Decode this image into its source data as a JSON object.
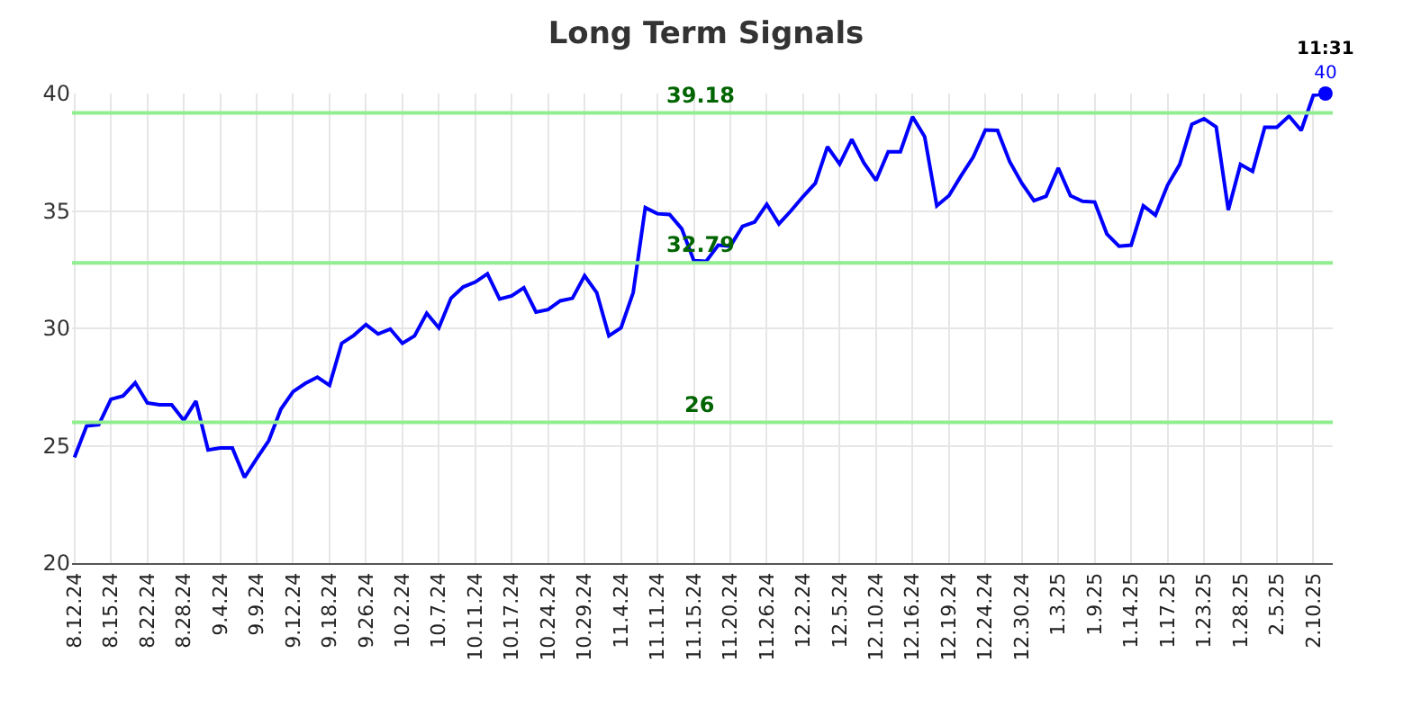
{
  "chart_data": {
    "type": "line",
    "title": "Long Term Signals",
    "categories": [
      "8.12.24",
      null,
      null,
      "8.15.24",
      null,
      null,
      "8.22.24",
      null,
      null,
      "8.28.24",
      null,
      null,
      "9.4.24",
      null,
      null,
      "9.9.24",
      null,
      null,
      "9.12.24",
      null,
      null,
      "9.18.24",
      null,
      null,
      "9.26.24",
      null,
      null,
      "10.2.24",
      null,
      null,
      "10.7.24",
      null,
      null,
      "10.11.24",
      null,
      null,
      "10.17.24",
      null,
      null,
      "10.24.24",
      null,
      null,
      "10.29.24",
      null,
      null,
      "11.4.24",
      null,
      null,
      "11.11.24",
      null,
      null,
      "11.15.24",
      null,
      null,
      "11.20.24",
      null,
      null,
      "11.26.24",
      null,
      null,
      "12.2.24",
      null,
      null,
      "12.5.24",
      null,
      null,
      "12.10.24",
      null,
      null,
      "12.16.24",
      null,
      null,
      "12.19.24",
      null,
      null,
      "12.24.24",
      null,
      null,
      "12.30.24",
      null,
      null,
      "1.3.25",
      null,
      null,
      "1.9.25",
      null,
      null,
      "1.14.25",
      null,
      null,
      "1.17.25",
      null,
      null,
      "1.23.25",
      null,
      null,
      "1.28.25",
      null,
      null,
      "2.5.25",
      null,
      null,
      "2.10.25",
      null
    ],
    "series": [
      {
        "color": "#0000ff",
        "values": [
          24.5,
          25.84,
          25.9,
          26.98,
          27.12,
          27.68,
          26.82,
          26.74,
          26.74,
          26.08,
          26.9,
          24.82,
          24.9,
          24.9,
          23.65,
          24.45,
          25.22,
          26.56,
          27.3,
          27.65,
          27.92,
          27.57,
          29.36,
          29.7,
          30.16,
          29.76,
          29.97,
          29.36,
          29.68,
          30.64,
          30.02,
          31.28,
          31.76,
          31.97,
          32.32,
          31.25,
          31.38,
          31.73,
          30.69,
          30.8,
          31.17,
          31.28,
          32.24,
          31.52,
          29.68,
          30.02,
          31.52,
          35.14,
          34.88,
          34.85,
          34.24,
          32.88,
          32.85,
          33.54,
          33.5,
          34.34,
          34.53,
          35.28,
          34.45,
          35.01,
          35.62,
          36.18,
          37.73,
          37.0,
          38.05,
          37.04,
          36.3,
          37.52,
          37.52,
          39.01,
          38.16,
          35.22,
          35.65,
          36.5,
          37.3,
          38.45,
          38.43,
          37.1,
          36.18,
          35.44,
          35.63,
          36.83,
          35.65,
          35.41,
          35.38,
          34.02,
          33.5,
          33.54,
          35.22,
          34.82,
          36.1,
          36.98,
          38.69,
          38.93,
          38.58,
          35.04,
          36.98,
          36.69,
          38.56,
          38.56,
          39.04,
          38.43,
          39.92,
          40
        ],
        "value_labels": [
          null,
          null,
          null,
          null,
          null,
          null,
          null,
          null,
          null,
          null,
          null,
          null,
          null,
          null,
          null,
          null,
          null,
          null,
          null,
          null,
          null,
          null,
          null,
          null,
          null,
          null,
          null,
          null,
          null,
          null,
          null,
          null,
          null,
          null,
          null,
          null,
          null,
          null,
          null,
          null,
          null,
          null,
          null,
          null,
          null,
          null,
          null,
          null,
          null,
          null,
          null,
          null,
          null,
          null,
          null,
          null,
          null,
          null,
          null,
          null,
          null,
          null,
          null,
          null,
          null,
          null,
          null,
          null,
          null,
          null,
          null,
          null,
          null,
          null,
          null,
          null,
          null,
          null,
          null,
          null,
          null,
          null,
          null,
          null,
          null,
          null,
          null,
          null,
          null,
          null,
          null,
          null,
          null,
          null,
          null,
          null,
          null,
          null,
          null,
          null,
          null,
          null,
          null,
          "40"
        ]
      }
    ],
    "ylim": [
      20,
      40
    ],
    "yticks": [
      20,
      25,
      30,
      35,
      40
    ],
    "grid": true,
    "marker": "none",
    "line_style": "solid",
    "ref_lines": [
      {
        "axis": "y",
        "value": 39.18,
        "label": "39.18",
        "color": "#90ee90"
      },
      {
        "axis": "y",
        "value": 32.79,
        "label": "32.79",
        "color": "#90ee90"
      },
      {
        "axis": "y",
        "value": 26,
        "label": "26",
        "color": "#90ee90"
      }
    ],
    "annotations": [
      "11:31"
    ]
  }
}
